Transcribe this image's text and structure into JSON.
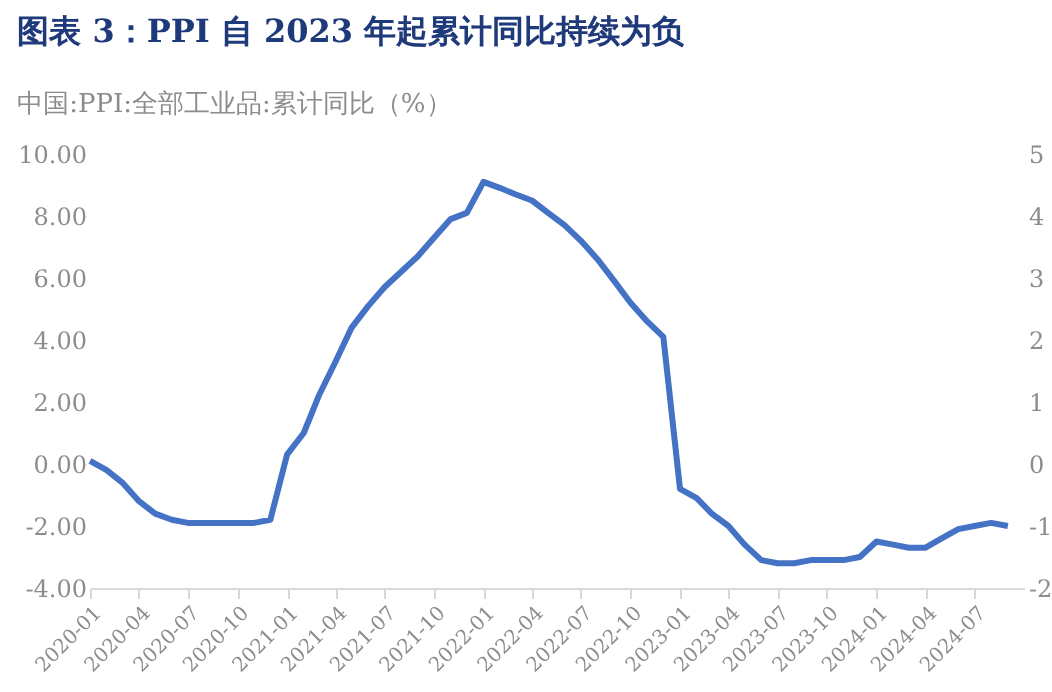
{
  "chart_data": {
    "type": "line",
    "title": "图表 3：PPI 自 2023 年起累计同比持续为负",
    "subtitle": "中国:PPI:全部工业品:累计同比（%）",
    "x": [
      "2020-01",
      "2020-02",
      "2020-03",
      "2020-04",
      "2020-05",
      "2020-06",
      "2020-07",
      "2020-08",
      "2020-09",
      "2020-10",
      "2020-11",
      "2020-12",
      "2021-01",
      "2021-02",
      "2021-03",
      "2021-04",
      "2021-05",
      "2021-06",
      "2021-07",
      "2021-08",
      "2021-09",
      "2021-10",
      "2021-11",
      "2021-12",
      "2022-01",
      "2022-02",
      "2022-03",
      "2022-04",
      "2022-05",
      "2022-06",
      "2022-07",
      "2022-08",
      "2022-09",
      "2022-10",
      "2022-11",
      "2022-12",
      "2023-01",
      "2023-02",
      "2023-03",
      "2023-04",
      "2023-05",
      "2023-06",
      "2023-07",
      "2023-08",
      "2023-09",
      "2023-10",
      "2023-11",
      "2023-12",
      "2024-01",
      "2024-02",
      "2024-03",
      "2024-04",
      "2024-05",
      "2024-06",
      "2024-07",
      "2024-08",
      "2024-09"
    ],
    "series": [
      {
        "color": "#4472c4",
        "values": [
          0.1,
          -0.2,
          -0.6,
          -1.2,
          -1.6,
          -1.8,
          -1.9,
          -1.9,
          -1.9,
          -1.9,
          -1.9,
          -1.8,
          0.3,
          1.0,
          2.2,
          3.3,
          4.4,
          5.1,
          5.7,
          6.2,
          6.7,
          7.3,
          7.9,
          8.1,
          9.1,
          8.9,
          8.7,
          8.5,
          8.1,
          7.7,
          7.2,
          6.6,
          5.9,
          5.2,
          4.6,
          4.1,
          -0.8,
          -1.1,
          -1.6,
          -2.0,
          -2.6,
          -3.1,
          -3.2,
          -3.2,
          -3.1,
          -3.1,
          -3.1,
          -3.0,
          -2.5,
          -2.6,
          -2.7,
          -2.7,
          -2.4,
          -2.1,
          -2.0,
          -1.9,
          -2.0
        ]
      }
    ],
    "xlim": [
      "2020-01",
      "2024-10"
    ],
    "xticks": [
      "2020-01",
      "2020-04",
      "2020-07",
      "2020-10",
      "2021-01",
      "2021-04",
      "2021-07",
      "2021-10",
      "2022-01",
      "2022-04",
      "2022-07",
      "2022-10",
      "2023-01",
      "2023-04",
      "2023-07",
      "2023-10",
      "2024-01",
      "2024-04",
      "2024-07"
    ],
    "ylim": [
      -4,
      10
    ],
    "yticks": [
      {
        "value": -4,
        "label": "-4.00"
      },
      {
        "value": -2,
        "label": "-2.00"
      },
      {
        "value": 0,
        "label": "0.00"
      },
      {
        "value": 2,
        "label": "2.00"
      },
      {
        "value": 4,
        "label": "4.00"
      },
      {
        "value": 6,
        "label": "6.00"
      },
      {
        "value": 8,
        "label": "8.00"
      },
      {
        "value": 10,
        "label": "10.00"
      }
    ],
    "y2lim": [
      -2,
      5
    ],
    "y2ticks": [
      -2,
      -1,
      0,
      1,
      2,
      3,
      4,
      5
    ],
    "grid": false,
    "marker": "none",
    "line_style": "solid"
  }
}
